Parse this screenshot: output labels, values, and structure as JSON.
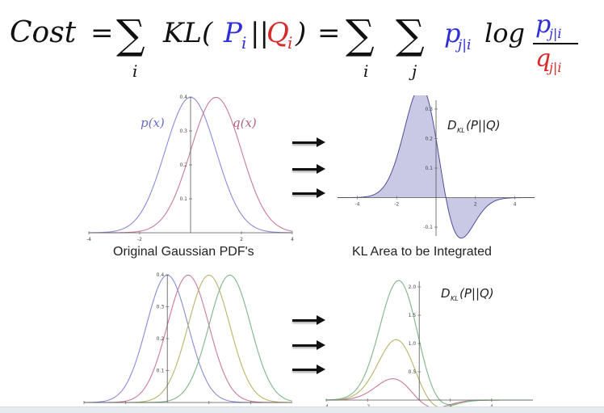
{
  "formula": {
    "cost": "Cost",
    "eq": "=",
    "sum": "∑",
    "idx_i": "i",
    "idx_j": "j",
    "kl": "KL(",
    "p_cap": "P",
    "q_cap": "Q",
    "sub_i": "i",
    "bars": "||",
    "close": ")",
    "p_small": "p",
    "sub_ji": "j|i",
    "log": "log",
    "q_small": "q",
    "colors": {
      "text": "#111111",
      "p": "#2f2fd6",
      "q": "#d42b2b"
    }
  },
  "captions": {
    "left": "Original Gaussian PDF's",
    "right": "KL Area to be Integrated"
  },
  "plots": {
    "top_left": {
      "label_p": "p(x)",
      "label_q": "q(x)",
      "xticks": [
        "-4",
        "-2",
        "2",
        "4"
      ],
      "yticks": [
        "0.4",
        "0.3",
        "0.2",
        "0.1"
      ],
      "p_mean": 0,
      "q_mean": 1,
      "sigma": 1,
      "xrange": [
        -4,
        4
      ],
      "yrange": [
        0,
        0.4
      ],
      "p_color": "#8a8ad8",
      "q_color": "#c87a9c"
    },
    "top_right": {
      "label": "D_KL(P||Q)",
      "label_d": "D",
      "label_sub": "KL",
      "label_args": "(P||Q)",
      "xticks": [
        "-4",
        "-2",
        "2",
        "4"
      ],
      "yticks": [
        "0.3",
        "0.2",
        "0.1",
        "-0.1"
      ],
      "xrange": [
        -5,
        5
      ],
      "yrange": [
        -0.13,
        0.33
      ],
      "fill_color": "#c9c9e6",
      "line_color": "#4e4e9a"
    },
    "bottom_left": {
      "xticks": [
        "-4",
        "-2",
        "2",
        "4"
      ],
      "yticks": [
        "0.4",
        "0.3",
        "0.2",
        "0.1"
      ],
      "means": [
        0,
        1,
        2,
        3
      ],
      "sigma": 1,
      "xrange": [
        -4,
        6
      ],
      "yrange": [
        0,
        0.4
      ],
      "colors": [
        "#8a8ad8",
        "#c87a9c",
        "#b9b46a",
        "#7fb58a"
      ]
    },
    "bottom_right": {
      "label_d": "D",
      "label_sub": "KL",
      "label_args": "(P||Q)",
      "xticks": [
        "-4",
        "-2",
        "2",
        "4"
      ],
      "yticks": [
        "2.0",
        "1.5",
        "1.0",
        "0.5"
      ],
      "mus": [
        1,
        2,
        3
      ],
      "xrange": [
        -4,
        6
      ],
      "yrange": [
        -0.1,
        2.1
      ],
      "colors": [
        "#c87a9c",
        "#b9b46a",
        "#7fb58a"
      ]
    }
  }
}
